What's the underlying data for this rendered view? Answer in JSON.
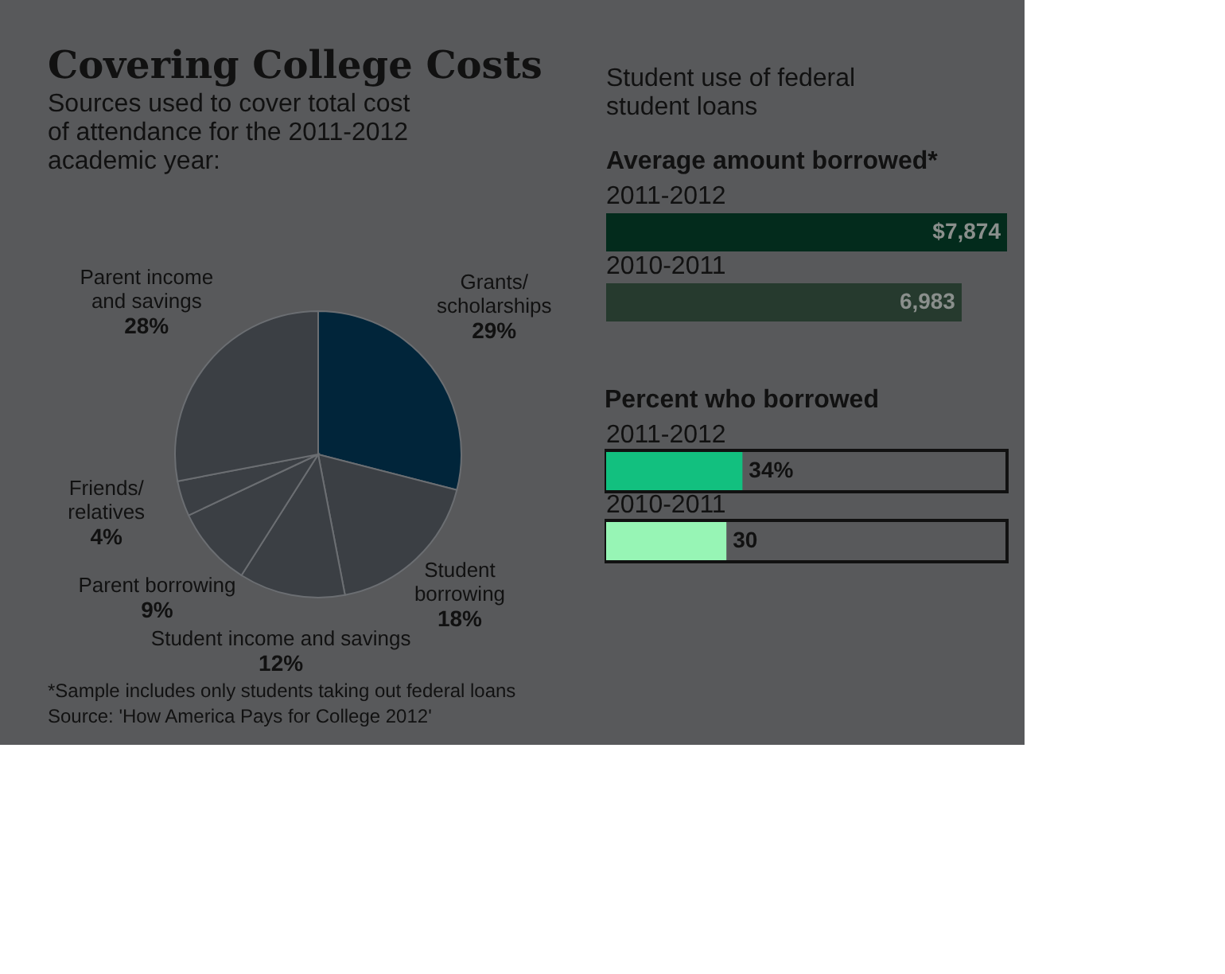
{
  "chart_data": [
    {
      "type": "pie",
      "title": "Covering College Costs",
      "subtitle": "Sources used to cover total cost of attendance for the 2011-2012 academic year:",
      "categories": [
        "Grants/\nscholarships",
        "Student\nborrowing",
        "Student income and savings",
        "Parent borrowing",
        "Friends/\nrelatives",
        "Parent income\nand savings"
      ],
      "values": [
        29,
        18,
        12,
        9,
        4,
        28
      ],
      "value_labels": [
        "29%",
        "18%",
        "12%",
        "9%",
        "4%",
        "28%"
      ],
      "colors": [
        "#01253a",
        "#3b3f44",
        "#3b3f44",
        "#3b3f44",
        "#3b3f44",
        "#3b3f44"
      ],
      "annotations": [
        "*Sample includes only students taking out federal loans",
        "Source: 'How America Pays for College 2012'"
      ]
    },
    {
      "type": "bar",
      "orientation": "horizontal",
      "title": "Student use of federal student loans",
      "subtitle": "Average amount borrowed*",
      "categories": [
        "2011-2012",
        "2010-2011"
      ],
      "values": [
        7874,
        6983
      ],
      "value_labels": [
        "$7,874",
        "6,983"
      ],
      "colors": [
        "#032b1c",
        "#263a2e"
      ]
    },
    {
      "type": "bar",
      "orientation": "horizontal",
      "title": "Percent who borrowed",
      "categories": [
        "2011-2012",
        "2010-2011"
      ],
      "values": [
        34,
        30
      ],
      "value_labels": [
        "34%",
        "30"
      ],
      "colors": [
        "#12c07f",
        "#97f5b5"
      ],
      "xlim": [
        0,
        100
      ]
    }
  ]
}
